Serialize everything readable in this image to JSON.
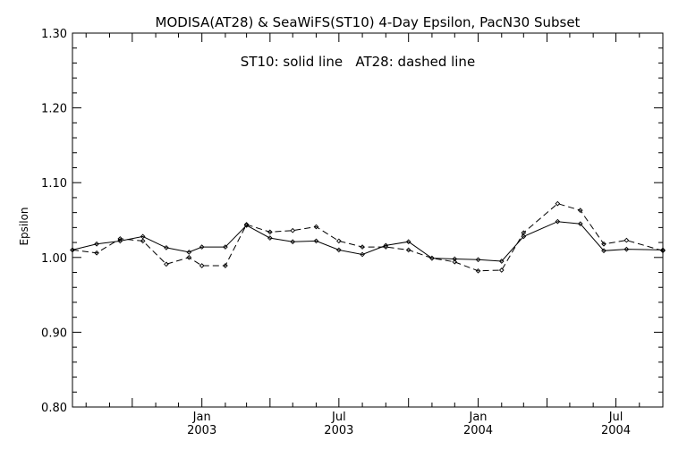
{
  "chart_data": {
    "type": "line",
    "title": "MODISA(AT28) & SeaWiFS(ST10) 4-Day Epsilon, PacN30 Subset",
    "annotation": "ST10: solid line   AT28: dashed line",
    "ylabel": "Epsilon",
    "xlabel": "",
    "xlim": [
      "2002-07-14",
      "2004-09-01"
    ],
    "ylim": [
      0.8,
      1.3
    ],
    "yticks": [
      "0.80",
      "0.90",
      "1.00",
      "1.10",
      "1.20",
      "1.30"
    ],
    "xtick_labels": [
      {
        "date": "2003-01-01",
        "month": "Jan",
        "year": "2003"
      },
      {
        "date": "2003-07-01",
        "month": "Jul",
        "year": "2003"
      },
      {
        "date": "2004-01-01",
        "month": "Jan",
        "year": "2004"
      },
      {
        "date": "2004-07-01",
        "month": "Jul",
        "year": "2004"
      }
    ],
    "grid": false,
    "series": [
      {
        "name": "ST10",
        "style": "solid",
        "color": "#000000",
        "x": [
          "2002-07-14",
          "2002-08-15",
          "2002-09-15",
          "2002-10-15",
          "2002-11-15",
          "2002-12-15",
          "2003-01-01",
          "2003-02-01",
          "2003-03-01",
          "2003-04-01",
          "2003-05-01",
          "2003-06-01",
          "2003-07-01",
          "2003-08-01",
          "2003-09-01",
          "2003-10-01",
          "2003-11-01",
          "2003-12-01",
          "2004-01-01",
          "2004-02-01",
          "2004-03-01",
          "2004-04-15",
          "2004-05-15",
          "2004-06-15",
          "2004-07-15",
          "2004-09-01"
        ],
        "y": [
          1.01,
          1.018,
          1.022,
          1.028,
          1.013,
          1.007,
          1.014,
          1.014,
          1.043,
          1.026,
          1.021,
          1.022,
          1.01,
          1.004,
          1.016,
          1.021,
          0.999,
          0.998,
          0.997,
          0.995,
          1.028,
          1.048,
          1.045,
          1.009,
          1.011,
          1.01
        ]
      },
      {
        "name": "AT28",
        "style": "dashed",
        "color": "#000000",
        "x": [
          "2002-07-14",
          "2002-08-15",
          "2002-09-15",
          "2002-10-15",
          "2002-11-15",
          "2002-12-15",
          "2003-01-01",
          "2003-02-01",
          "2003-03-01",
          "2003-04-01",
          "2003-05-01",
          "2003-06-01",
          "2003-07-01",
          "2003-08-01",
          "2003-09-01",
          "2003-10-01",
          "2003-11-01",
          "2003-12-01",
          "2004-01-01",
          "2004-02-01",
          "2004-03-01",
          "2004-04-15",
          "2004-05-15",
          "2004-06-15",
          "2004-07-15",
          "2004-09-01"
        ],
        "y": [
          1.01,
          1.006,
          1.025,
          1.022,
          0.991,
          1.0,
          0.989,
          0.989,
          1.044,
          1.034,
          1.036,
          1.041,
          1.022,
          1.014,
          1.014,
          1.01,
          0.999,
          0.994,
          0.982,
          0.983,
          1.033,
          1.072,
          1.063,
          1.018,
          1.023,
          1.009
        ]
      }
    ]
  }
}
